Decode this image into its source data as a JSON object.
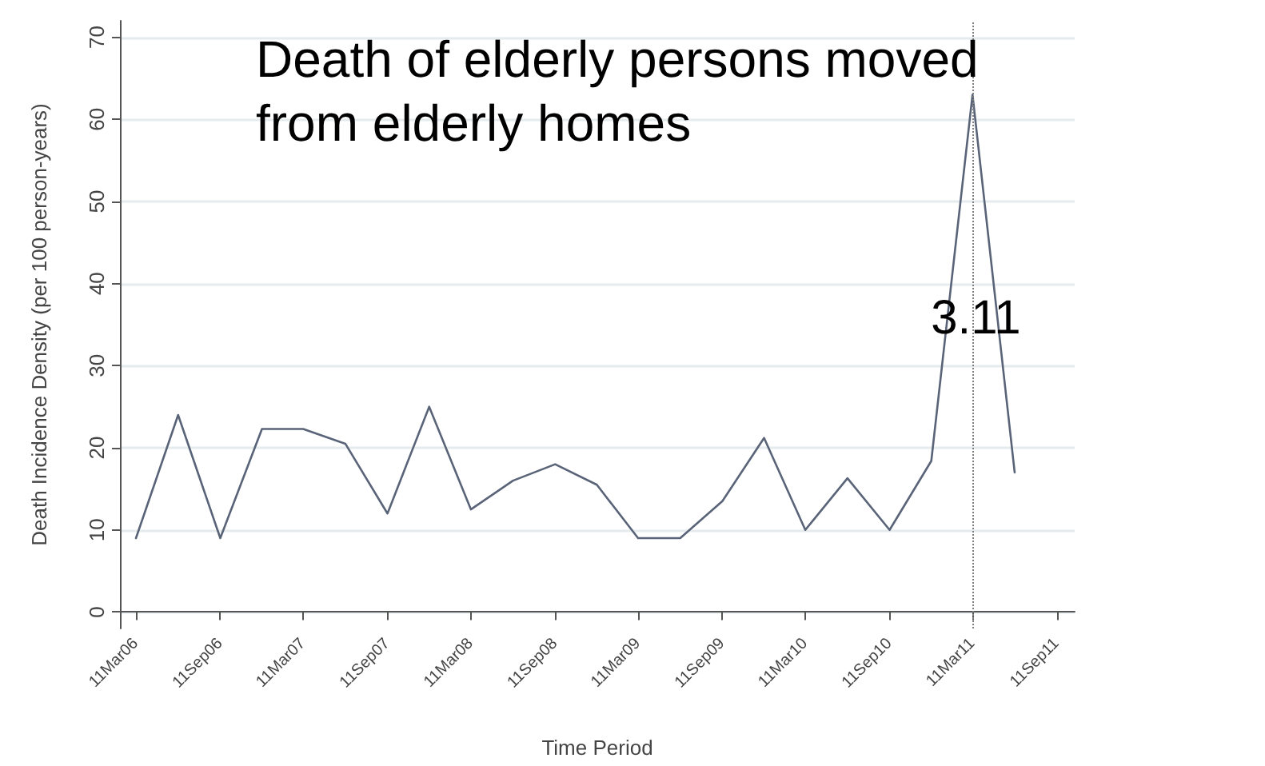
{
  "chart_data": {
    "type": "line",
    "title": "Death of elderly persons moved from elderly homes",
    "xlabel": "Time Period",
    "ylabel": "Death Incidence Density (per 100 person-years)",
    "x": [
      "2006-03-11",
      "2006-06-11",
      "2006-09-11",
      "2006-12-11",
      "2007-03-11",
      "2007-06-11",
      "2007-09-11",
      "2007-12-11",
      "2008-03-11",
      "2008-06-11",
      "2008-09-11",
      "2008-12-11",
      "2009-03-11",
      "2009-06-11",
      "2009-09-11",
      "2009-12-11",
      "2010-03-11",
      "2010-06-11",
      "2010-09-11",
      "2010-12-11",
      "2011-03-11",
      "2011-06-11"
    ],
    "series": [
      {
        "color": "#5a6478",
        "values": [
          9,
          24,
          9,
          22.3,
          22.3,
          20.5,
          12,
          25,
          12.5,
          16,
          18,
          15.5,
          9,
          9,
          13.5,
          21.2,
          10,
          16.3,
          10,
          18.4,
          63,
          17
        ]
      }
    ],
    "xlim": [
      "2006-02-04",
      "2011-10-20"
    ],
    "xticks": [
      {
        "value": "2006-03-11",
        "label": "11Mar06"
      },
      {
        "value": "2006-09-11",
        "label": "11Sep06"
      },
      {
        "value": "2007-03-11",
        "label": "11Mar07"
      },
      {
        "value": "2007-09-11",
        "label": "11Sep07"
      },
      {
        "value": "2008-03-11",
        "label": "11Mar08"
      },
      {
        "value": "2008-09-11",
        "label": "11Sep08"
      },
      {
        "value": "2009-03-11",
        "label": "11Mar09"
      },
      {
        "value": "2009-09-11",
        "label": "11Sep09"
      },
      {
        "value": "2010-03-11",
        "label": "11Mar10"
      },
      {
        "value": "2010-09-11",
        "label": "11Sep10"
      },
      {
        "value": "2011-03-11",
        "label": "11Mar11"
      },
      {
        "value": "2011-09-11",
        "label": "11Sep11"
      }
    ],
    "ylim": [
      -2,
      72
    ],
    "yticks": [
      0,
      10,
      20,
      30,
      40,
      50,
      60,
      70
    ],
    "grid": "y",
    "marker": "none",
    "line_style": "solid",
    "ref_lines": [
      {
        "axis": "x",
        "value": "2011-03-11",
        "label": "3.11",
        "color": "#808080",
        "line_style": "dotted"
      }
    ]
  }
}
